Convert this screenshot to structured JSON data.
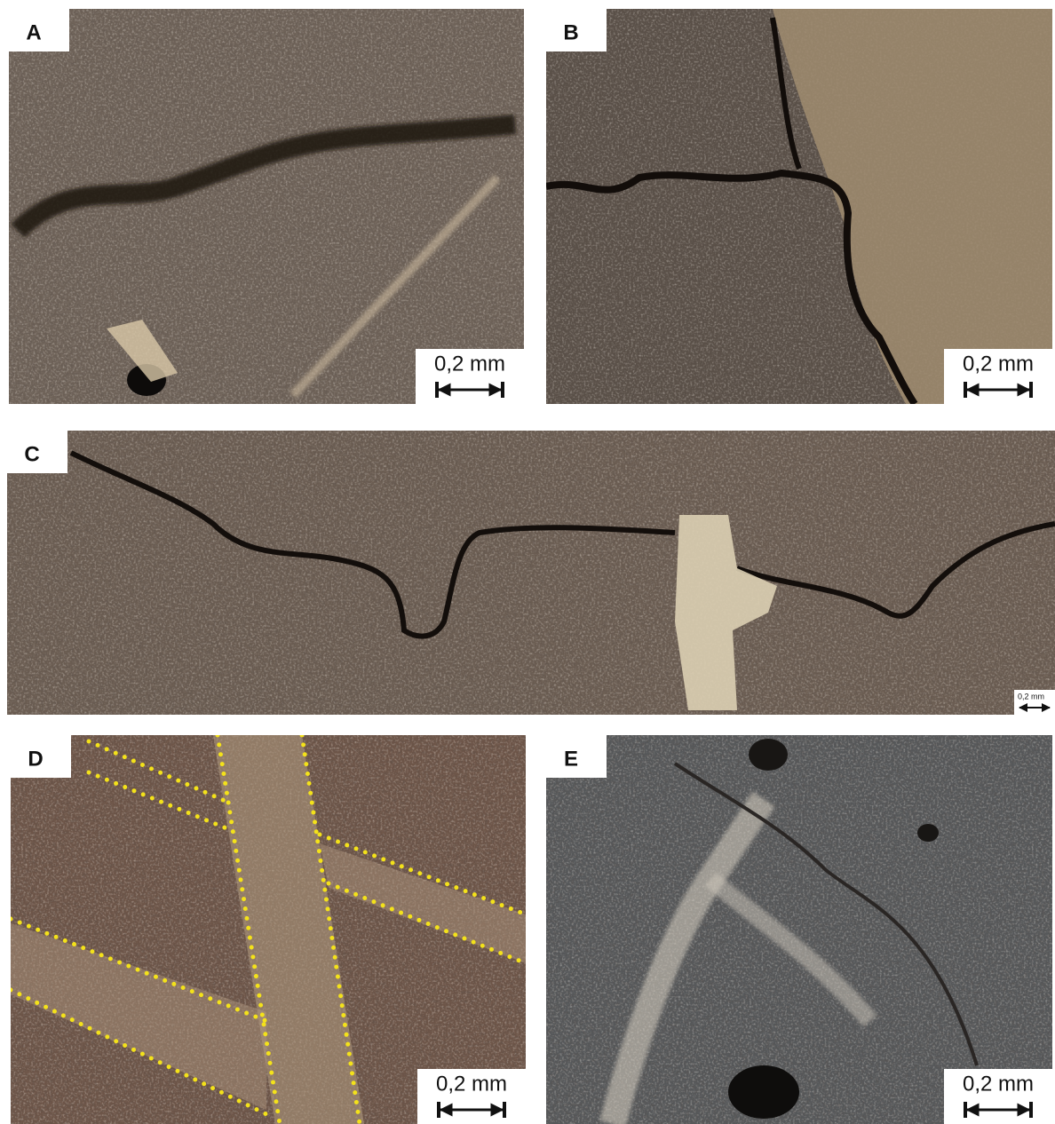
{
  "panels": [
    {
      "label": "A",
      "scale": "0,2 mm"
    },
    {
      "label": "B",
      "scale": "0,2 mm"
    },
    {
      "label": "C",
      "scale": "0,2 mm"
    },
    {
      "label": "D",
      "scale": "0,2 mm"
    },
    {
      "label": "E",
      "scale": "0,2 mm"
    }
  ]
}
